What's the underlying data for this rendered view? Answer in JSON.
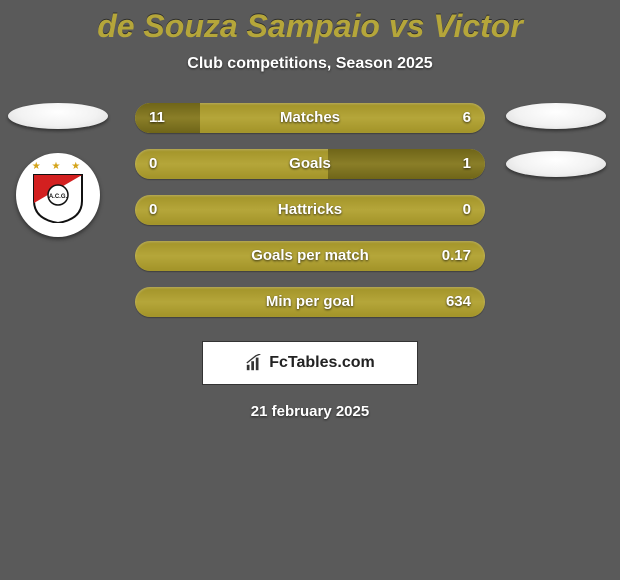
{
  "header": {
    "title": "de Souza Sampaio vs Victor",
    "subtitle": "Club competitions, Season 2025"
  },
  "stats": {
    "rows": [
      {
        "label": "Matches",
        "left_value": "11",
        "right_value": "6",
        "left_pct": 18.5,
        "right_pct": 0
      },
      {
        "label": "Goals",
        "left_value": "0",
        "right_value": "1",
        "left_pct": 0,
        "right_pct": 45
      },
      {
        "label": "Hattricks",
        "left_value": "0",
        "right_value": "0",
        "left_pct": 0,
        "right_pct": 0
      },
      {
        "label": "Goals per match",
        "left_value": "",
        "right_value": "0.17",
        "left_pct": 0,
        "right_pct": 0
      },
      {
        "label": "Min per goal",
        "left_value": "",
        "right_value": "634",
        "left_pct": 0,
        "right_pct": 0
      }
    ]
  },
  "branding": {
    "logo_text": "FcTables.com",
    "date_text": "21 february 2025"
  },
  "colors": {
    "background": "#5a5a5a",
    "bar_base": "#b5a63a",
    "bar_fill": "#8a7e28",
    "title": "#b5a63a"
  }
}
